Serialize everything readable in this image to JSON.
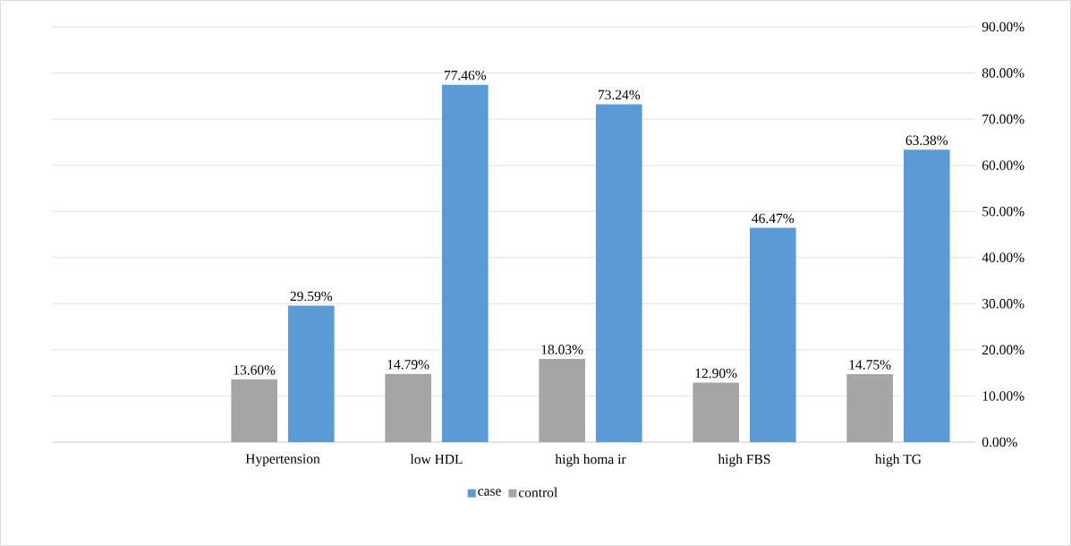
{
  "chart_data": {
    "type": "bar",
    "categories": [
      null,
      "Hypertension",
      "low HDL",
      "high homa ir",
      "high FBS",
      "high TG"
    ],
    "series": [
      {
        "name": "control",
        "color": "#a5a5a5",
        "values": [
          null,
          13.6,
          14.79,
          18.03,
          12.9,
          14.75
        ],
        "value_labels": [
          null,
          "13.60%",
          "14.79%",
          "18.03%",
          "12.90%",
          "14.75%"
        ]
      },
      {
        "name": "case",
        "color": "#5b9bd5",
        "values": [
          null,
          29.59,
          77.46,
          73.24,
          46.47,
          63.38
        ],
        "value_labels": [
          null,
          "29.59%",
          "77.46%",
          "73.24%",
          "46.47%",
          "63.38%"
        ]
      }
    ],
    "ylim": [
      0,
      90
    ],
    "yticks": [
      {
        "value": 0,
        "label": "0.00%"
      },
      {
        "value": 10,
        "label": "10.00%"
      },
      {
        "value": 20,
        "label": "20.00%"
      },
      {
        "value": 30,
        "label": "30.00%"
      },
      {
        "value": 40,
        "label": "40.00%"
      },
      {
        "value": 50,
        "label": "50.00%"
      },
      {
        "value": 60,
        "label": "60.00%"
      },
      {
        "value": 70,
        "label": "70.00%"
      },
      {
        "value": 80,
        "label": "80.00%"
      },
      {
        "value": 90,
        "label": "90.00%"
      }
    ],
    "grid": "y",
    "legend": "bottom"
  }
}
